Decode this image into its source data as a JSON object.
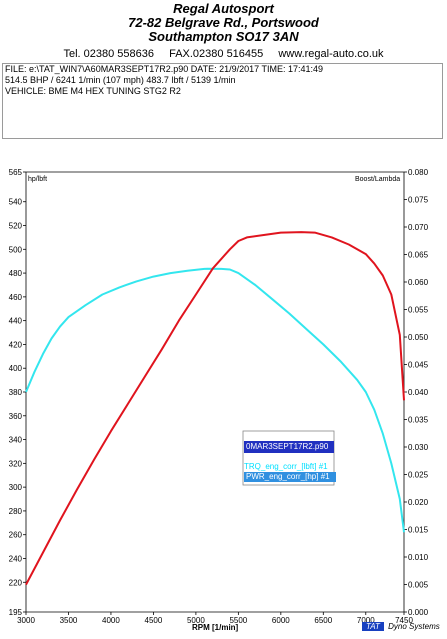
{
  "header": {
    "company": "Regal Autosport",
    "address": "72-82 Belgrave Rd., Portswood",
    "city": "Southampton SO17 3AN",
    "tel": "Tel. 02380 558636",
    "fax": "FAX.02380 516455",
    "web": "www.regal-auto.co.uk"
  },
  "info": {
    "file_line": "FILE: e:\\TAT_WIN7\\A60MAR3SEPT17R2.p90  DATE: 21/9/2017  TIME: 17:41:49",
    "power_line": "514.5 BHP / 6241 1/min (107 mph)    483.7 lbft / 5139 1/min",
    "vehicle_line": "VEHICLE: BME M4 HEX TUNING STG2 R2"
  },
  "legend": {
    "file": "0MAR3SEPT17R2.p90",
    "trq": "TRQ_eng_corr_[lbft] #1",
    "pwr": "PWR_eng_corr_[hp] #1"
  },
  "brand": {
    "tat": "TAT",
    "dyno": "Dyno Systems"
  },
  "chart_data": {
    "type": "line",
    "xlabel": "RPM  [1/min]",
    "ylabel_left": "hp/lbft",
    "ylabel_right": "Boost/Lambda",
    "xlim": [
      3000,
      7450
    ],
    "ylim_left": [
      195,
      565
    ],
    "ylim_right": [
      0.0,
      0.08
    ],
    "x_ticks": [
      3000,
      3500,
      4000,
      4500,
      5000,
      5500,
      6000,
      6500,
      7000,
      7450
    ],
    "y_ticks_left": [
      195,
      220,
      240,
      260,
      280,
      300,
      320,
      340,
      360,
      380,
      400,
      420,
      440,
      460,
      480,
      500,
      520,
      540,
      565
    ],
    "y_ticks_right": [
      "0.000",
      "0.005",
      "0.010",
      "0.015",
      "0.020",
      "0.025",
      "0.030",
      "0.035",
      "0.040",
      "0.045",
      "0.050",
      "0.055",
      "0.060",
      "0.065",
      "0.070",
      "0.075",
      "0.080"
    ],
    "grid": false,
    "series": [
      {
        "name": "TRQ_eng_corr_[lbft] #1",
        "color": "#33e6ee",
        "x": [
          3000,
          3100,
          3200,
          3300,
          3400,
          3500,
          3700,
          3900,
          4100,
          4300,
          4500,
          4700,
          4900,
          5100,
          5139,
          5300,
          5400,
          5500,
          5700,
          5900,
          6100,
          6300,
          6500,
          6700,
          6900,
          7000,
          7100,
          7200,
          7300,
          7400,
          7450
        ],
        "y": [
          380,
          397,
          412,
          425,
          435,
          443,
          453,
          462,
          468,
          473,
          477,
          480,
          482,
          483.5,
          483.7,
          483.5,
          483,
          480,
          470,
          458,
          446,
          433,
          420,
          406,
          390,
          380,
          365,
          345,
          320,
          290,
          262
        ]
      },
      {
        "name": "PWR_eng_corr_[hp] #1",
        "color": "#e0141e",
        "x": [
          3000,
          3200,
          3400,
          3600,
          3800,
          4000,
          4200,
          4400,
          4600,
          4800,
          5000,
          5200,
          5400,
          5500,
          5600,
          5800,
          6000,
          6241,
          6400,
          6600,
          6800,
          7000,
          7100,
          7200,
          7300,
          7400,
          7450
        ],
        "y": [
          218,
          245,
          272,
          298,
          323,
          347,
          370,
          393,
          416,
          440,
          462,
          484,
          500,
          507,
          510,
          512,
          514,
          514.5,
          514,
          510,
          504,
          496,
          488,
          478,
          462,
          428,
          373
        ]
      }
    ]
  }
}
